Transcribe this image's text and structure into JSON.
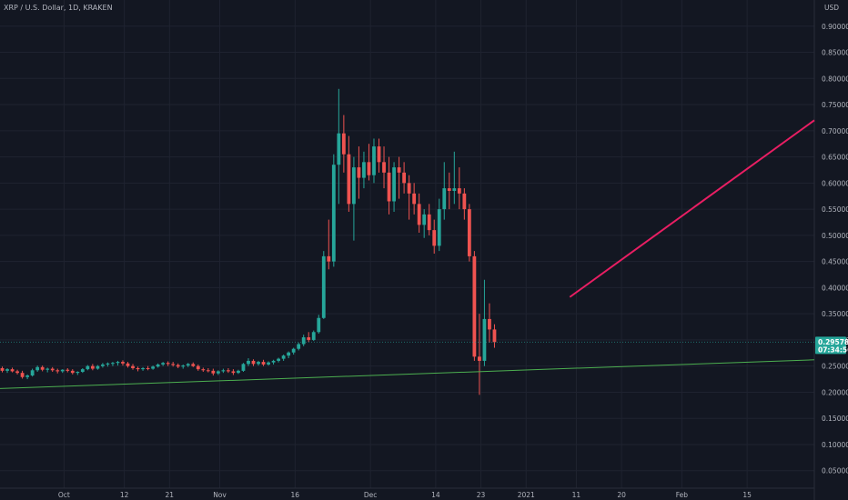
{
  "chart_data": {
    "type": "candlestick",
    "title": "XRP / U.S. Dollar, 1D, KRAKEN",
    "currency": "USD",
    "ylim": [
      0.0,
      0.95
    ],
    "y_ticks": [
      "0.90000",
      "0.85000",
      "0.80000",
      "0.75000",
      "0.70000",
      "0.65000",
      "0.60000",
      "0.55000",
      "0.50000",
      "0.45000",
      "0.40000",
      "0.35000",
      "0.30000",
      "0.25000",
      "0.20000",
      "0.15000",
      "0.10000",
      "0.05000"
    ],
    "x_ticks": [
      "Oct",
      "12",
      "21",
      "Nov",
      "16",
      "Dec",
      "14",
      "23",
      "2021",
      "11",
      "20",
      "Feb",
      "15"
    ],
    "last_price": "0.29578",
    "countdown": "07:34:56",
    "grid": true,
    "colors": {
      "background": "#131722",
      "grid": "#1f2330",
      "up": "#26a69a",
      "down": "#ef5350",
      "support_line": "#4caf50",
      "trend_line": "#e91e63",
      "badge": "#26a69a",
      "text": "#b2b5be"
    },
    "candles": [
      [
        0.246,
        0.249,
        0.238,
        0.241
      ],
      [
        0.241,
        0.246,
        0.237,
        0.244
      ],
      [
        0.244,
        0.247,
        0.238,
        0.24
      ],
      [
        0.24,
        0.243,
        0.234,
        0.237
      ],
      [
        0.237,
        0.241,
        0.226,
        0.229
      ],
      [
        0.229,
        0.234,
        0.225,
        0.232
      ],
      [
        0.232,
        0.245,
        0.23,
        0.242
      ],
      [
        0.242,
        0.251,
        0.239,
        0.248
      ],
      [
        0.248,
        0.251,
        0.24,
        0.243
      ],
      [
        0.243,
        0.247,
        0.238,
        0.245
      ],
      [
        0.245,
        0.248,
        0.239,
        0.242
      ],
      [
        0.242,
        0.245,
        0.236,
        0.24
      ],
      [
        0.24,
        0.244,
        0.237,
        0.243
      ],
      [
        0.243,
        0.246,
        0.238,
        0.241
      ],
      [
        0.241,
        0.244,
        0.234,
        0.237
      ],
      [
        0.237,
        0.24,
        0.233,
        0.239
      ],
      [
        0.239,
        0.246,
        0.237,
        0.244
      ],
      [
        0.244,
        0.252,
        0.242,
        0.25
      ],
      [
        0.25,
        0.254,
        0.242,
        0.245
      ],
      [
        0.245,
        0.252,
        0.243,
        0.25
      ],
      [
        0.25,
        0.256,
        0.247,
        0.253
      ],
      [
        0.253,
        0.257,
        0.249,
        0.255
      ],
      [
        0.255,
        0.258,
        0.25,
        0.256
      ],
      [
        0.256,
        0.26,
        0.251,
        0.258
      ],
      [
        0.258,
        0.261,
        0.251,
        0.255
      ],
      [
        0.255,
        0.258,
        0.247,
        0.25
      ],
      [
        0.25,
        0.254,
        0.243,
        0.246
      ],
      [
        0.246,
        0.249,
        0.24,
        0.244
      ],
      [
        0.244,
        0.248,
        0.241,
        0.246
      ],
      [
        0.246,
        0.25,
        0.242,
        0.245
      ],
      [
        0.245,
        0.251,
        0.243,
        0.249
      ],
      [
        0.249,
        0.255,
        0.247,
        0.253
      ],
      [
        0.253,
        0.258,
        0.25,
        0.256
      ],
      [
        0.256,
        0.259,
        0.25,
        0.254
      ],
      [
        0.254,
        0.258,
        0.249,
        0.252
      ],
      [
        0.252,
        0.255,
        0.246,
        0.249
      ],
      [
        0.249,
        0.253,
        0.245,
        0.251
      ],
      [
        0.251,
        0.256,
        0.248,
        0.254
      ],
      [
        0.254,
        0.257,
        0.248,
        0.25
      ],
      [
        0.25,
        0.253,
        0.241,
        0.244
      ],
      [
        0.244,
        0.247,
        0.239,
        0.242
      ],
      [
        0.242,
        0.246,
        0.238,
        0.241
      ],
      [
        0.241,
        0.245,
        0.232,
        0.236
      ],
      [
        0.236,
        0.242,
        0.233,
        0.24
      ],
      [
        0.24,
        0.245,
        0.237,
        0.242
      ],
      [
        0.242,
        0.246,
        0.237,
        0.24
      ],
      [
        0.24,
        0.244,
        0.233,
        0.237
      ],
      [
        0.237,
        0.243,
        0.235,
        0.241
      ],
      [
        0.241,
        0.256,
        0.239,
        0.254
      ],
      [
        0.254,
        0.265,
        0.25,
        0.26
      ],
      [
        0.26,
        0.263,
        0.25,
        0.254
      ],
      [
        0.254,
        0.26,
        0.251,
        0.258
      ],
      [
        0.258,
        0.262,
        0.25,
        0.253
      ],
      [
        0.253,
        0.259,
        0.251,
        0.257
      ],
      [
        0.257,
        0.262,
        0.253,
        0.26
      ],
      [
        0.26,
        0.266,
        0.257,
        0.264
      ],
      [
        0.264,
        0.272,
        0.26,
        0.27
      ],
      [
        0.27,
        0.278,
        0.265,
        0.276
      ],
      [
        0.276,
        0.285,
        0.272,
        0.283
      ],
      [
        0.283,
        0.295,
        0.28,
        0.292
      ],
      [
        0.292,
        0.31,
        0.288,
        0.305
      ],
      [
        0.305,
        0.315,
        0.296,
        0.3
      ],
      [
        0.3,
        0.318,
        0.298,
        0.315
      ],
      [
        0.315,
        0.348,
        0.312,
        0.342
      ],
      [
        0.342,
        0.47,
        0.34,
        0.46
      ],
      [
        0.46,
        0.53,
        0.435,
        0.45
      ],
      [
        0.45,
        0.655,
        0.44,
        0.635
      ],
      [
        0.635,
        0.78,
        0.56,
        0.695
      ],
      [
        0.695,
        0.73,
        0.62,
        0.655
      ],
      [
        0.655,
        0.69,
        0.545,
        0.56
      ],
      [
        0.56,
        0.65,
        0.49,
        0.63
      ],
      [
        0.63,
        0.67,
        0.57,
        0.61
      ],
      [
        0.61,
        0.66,
        0.59,
        0.64
      ],
      [
        0.64,
        0.675,
        0.605,
        0.615
      ],
      [
        0.615,
        0.685,
        0.6,
        0.67
      ],
      [
        0.67,
        0.685,
        0.62,
        0.64
      ],
      [
        0.64,
        0.67,
        0.59,
        0.62
      ],
      [
        0.62,
        0.65,
        0.54,
        0.565
      ],
      [
        0.565,
        0.64,
        0.545,
        0.63
      ],
      [
        0.63,
        0.65,
        0.57,
        0.62
      ],
      [
        0.62,
        0.64,
        0.58,
        0.6
      ],
      [
        0.6,
        0.615,
        0.53,
        0.58
      ],
      [
        0.58,
        0.6,
        0.54,
        0.56
      ],
      [
        0.56,
        0.58,
        0.505,
        0.52
      ],
      [
        0.52,
        0.55,
        0.495,
        0.54
      ],
      [
        0.54,
        0.56,
        0.5,
        0.51
      ],
      [
        0.51,
        0.53,
        0.465,
        0.48
      ],
      [
        0.48,
        0.57,
        0.47,
        0.55
      ],
      [
        0.55,
        0.64,
        0.53,
        0.59
      ],
      [
        0.59,
        0.62,
        0.55,
        0.585
      ],
      [
        0.585,
        0.66,
        0.56,
        0.59
      ],
      [
        0.59,
        0.63,
        0.55,
        0.58
      ],
      [
        0.58,
        0.59,
        0.53,
        0.55
      ],
      [
        0.55,
        0.56,
        0.45,
        0.46
      ],
      [
        0.46,
        0.47,
        0.26,
        0.268
      ],
      [
        0.268,
        0.35,
        0.195,
        0.26
      ],
      [
        0.26,
        0.415,
        0.25,
        0.34
      ],
      [
        0.34,
        0.37,
        0.295,
        0.32
      ],
      [
        0.32,
        0.33,
        0.285,
        0.2958
      ]
    ],
    "support_line": {
      "start": [
        0,
        0.207
      ],
      "end": [
        148,
        0.262
      ]
    },
    "trend_line": {
      "start": [
        113,
        0.382
      ],
      "end": [
        148,
        0.72
      ]
    }
  }
}
